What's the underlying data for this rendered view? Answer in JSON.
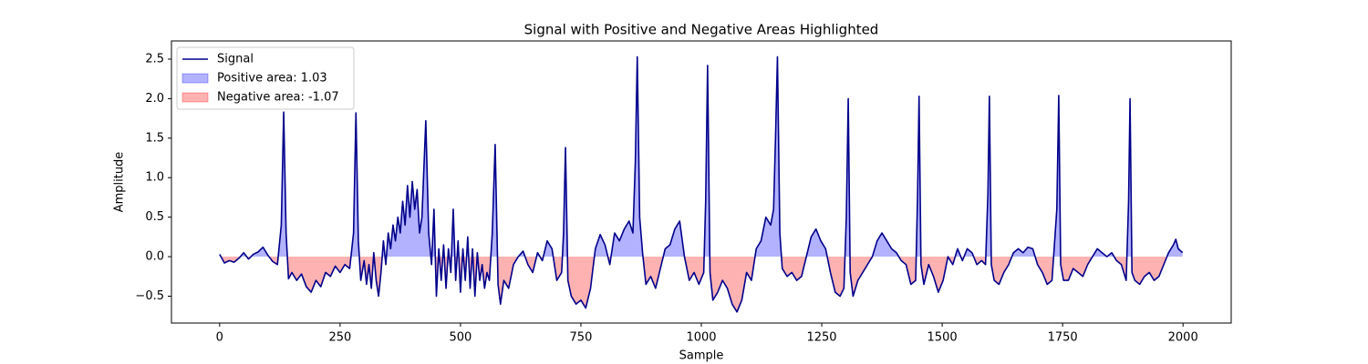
{
  "chart_data": {
    "type": "line",
    "title": "Signal with Positive and Negative Areas Highlighted",
    "xlabel": "Sample",
    "ylabel": "Amplitude",
    "x": [
      0,
      10,
      20,
      30,
      40,
      50,
      60,
      70,
      80,
      90,
      100,
      110,
      120,
      128,
      133,
      138,
      143,
      150,
      160,
      170,
      180,
      190,
      200,
      210,
      220,
      230,
      240,
      250,
      260,
      270,
      278,
      283,
      288,
      293,
      300,
      305,
      310,
      315,
      320,
      325,
      330,
      335,
      340,
      345,
      350,
      355,
      360,
      365,
      370,
      375,
      380,
      385,
      390,
      395,
      400,
      405,
      410,
      415,
      420,
      428,
      434,
      440,
      445,
      450,
      455,
      460,
      465,
      470,
      475,
      480,
      485,
      490,
      495,
      500,
      505,
      510,
      515,
      520,
      525,
      530,
      535,
      540,
      545,
      550,
      555,
      560,
      566,
      572,
      578,
      583,
      590,
      600,
      610,
      620,
      630,
      640,
      650,
      660,
      670,
      680,
      690,
      700,
      710,
      714,
      718,
      723,
      730,
      740,
      750,
      760,
      770,
      780,
      790,
      800,
      810,
      820,
      830,
      840,
      850,
      858,
      863,
      867,
      872,
      878,
      885,
      895,
      905,
      915,
      925,
      935,
      945,
      955,
      965,
      975,
      985,
      995,
      1005,
      1009,
      1013,
      1018,
      1024,
      1034,
      1044,
      1054,
      1064,
      1074,
      1084,
      1094,
      1104,
      1114,
      1124,
      1134,
      1144,
      1150,
      1154,
      1158,
      1163,
      1168,
      1178,
      1188,
      1198,
      1208,
      1218,
      1228,
      1238,
      1248,
      1258,
      1268,
      1278,
      1288,
      1296,
      1301,
      1305,
      1309,
      1315,
      1325,
      1335,
      1345,
      1355,
      1365,
      1375,
      1385,
      1395,
      1405,
      1415,
      1425,
      1435,
      1445,
      1449,
      1452,
      1456,
      1462,
      1472,
      1482,
      1492,
      1502,
      1512,
      1522,
      1532,
      1542,
      1552,
      1562,
      1572,
      1582,
      1590,
      1595,
      1598,
      1602,
      1608,
      1618,
      1628,
      1638,
      1648,
      1658,
      1668,
      1678,
      1688,
      1698,
      1708,
      1718,
      1728,
      1738,
      1742,
      1746,
      1752,
      1762,
      1772,
      1782,
      1792,
      1802,
      1812,
      1822,
      1832,
      1842,
      1852,
      1862,
      1872,
      1882,
      1887,
      1890,
      1894,
      1900,
      1910,
      1920,
      1930,
      1940,
      1950,
      1960,
      1970,
      1980,
      1985,
      1990,
      1999
    ],
    "series": [
      {
        "name": "Signal",
        "color": "#00008b",
        "values": [
          0.03,
          -0.08,
          -0.05,
          -0.07,
          -0.02,
          0.05,
          -0.03,
          0.03,
          0.06,
          0.12,
          0.02,
          -0.06,
          -0.1,
          0.4,
          1.83,
          0.3,
          -0.28,
          -0.2,
          -0.3,
          -0.22,
          -0.38,
          -0.45,
          -0.3,
          -0.38,
          -0.2,
          -0.25,
          -0.12,
          -0.2,
          -0.1,
          -0.15,
          0.3,
          1.82,
          0.2,
          -0.3,
          -0.05,
          -0.35,
          -0.1,
          -0.4,
          0.05,
          -0.3,
          -0.5,
          -0.2,
          0.2,
          -0.1,
          0.3,
          0.1,
          0.4,
          0.2,
          0.5,
          0.3,
          0.7,
          0.4,
          0.9,
          0.5,
          0.95,
          0.6,
          0.85,
          0.3,
          0.5,
          1.72,
          0.3,
          -0.1,
          0.6,
          -0.5,
          0.1,
          -0.3,
          0.15,
          -0.4,
          0.1,
          -0.2,
          0.6,
          -0.3,
          0.2,
          -0.45,
          0.1,
          -0.3,
          0.25,
          -0.4,
          0.1,
          -0.5,
          0.05,
          -0.3,
          -0.1,
          -0.4,
          -0.2,
          -0.3,
          0.3,
          1.42,
          -0.35,
          -0.6,
          -0.3,
          -0.4,
          -0.1,
          0.0,
          0.07,
          -0.1,
          -0.2,
          0.05,
          -0.05,
          0.2,
          0.1,
          -0.3,
          -0.2,
          0.3,
          1.38,
          -0.3,
          -0.5,
          -0.6,
          -0.55,
          -0.65,
          -0.4,
          0.1,
          0.28,
          0.15,
          -0.1,
          0.3,
          0.2,
          0.35,
          0.45,
          0.3,
          1.2,
          2.53,
          0.5,
          0.05,
          -0.35,
          -0.25,
          -0.4,
          -0.15,
          0.1,
          0.15,
          0.35,
          0.45,
          0.0,
          -0.3,
          -0.2,
          -0.35,
          -0.2,
          0.7,
          2.42,
          -0.2,
          -0.55,
          -0.45,
          -0.3,
          -0.4,
          -0.6,
          -0.7,
          -0.55,
          -0.2,
          -0.3,
          0.1,
          0.2,
          0.5,
          0.4,
          0.6,
          1.5,
          2.53,
          0.3,
          -0.15,
          -0.25,
          -0.2,
          -0.3,
          -0.25,
          0.0,
          0.25,
          0.35,
          0.2,
          0.1,
          -0.2,
          -0.45,
          -0.5,
          -0.4,
          0.5,
          2.0,
          -0.2,
          -0.5,
          -0.3,
          -0.2,
          -0.1,
          0.0,
          0.2,
          0.3,
          0.2,
          0.1,
          0.05,
          -0.05,
          -0.1,
          -0.35,
          -0.3,
          0.8,
          2.03,
          -0.1,
          -0.35,
          -0.1,
          -0.25,
          -0.45,
          -0.3,
          0.0,
          -0.1,
          0.1,
          -0.05,
          0.1,
          0.05,
          -0.1,
          -0.05,
          -0.1,
          0.8,
          2.03,
          -0.1,
          -0.3,
          -0.35,
          -0.2,
          -0.1,
          0.05,
          0.1,
          0.05,
          0.12,
          0.1,
          -0.1,
          -0.2,
          -0.35,
          -0.3,
          0.6,
          2.04,
          -0.1,
          -0.3,
          -0.3,
          -0.15,
          -0.2,
          -0.25,
          -0.1,
          0.0,
          0.1,
          0.05,
          0.0,
          0.05,
          -0.05,
          -0.1,
          -0.3,
          0.7,
          2.0,
          -0.2,
          -0.3,
          -0.35,
          -0.25,
          -0.2,
          -0.3,
          -0.25,
          -0.1,
          0.05,
          0.15,
          0.22,
          0.1,
          0.05
        ]
      }
    ],
    "fills": [
      {
        "name": "Positive area: 1.03",
        "color": "blue",
        "side": "positive"
      },
      {
        "name": "Negative area: -1.07",
        "color": "red",
        "side": "negative"
      }
    ],
    "xlim": [
      -100,
      2100
    ],
    "ylim": [
      -0.84,
      2.73
    ],
    "xticks": [
      0,
      250,
      500,
      750,
      1000,
      1250,
      1500,
      1750,
      2000
    ],
    "yticks": [
      {
        "value": -0.5,
        "label": "−0.5"
      },
      {
        "value": 0,
        "label": "0.0"
      },
      0.5,
      {
        "value": 1,
        "label": "1.0"
      },
      1.5,
      {
        "value": 2,
        "label": "2.0"
      },
      2.5
    ],
    "legend": "upper left"
  }
}
